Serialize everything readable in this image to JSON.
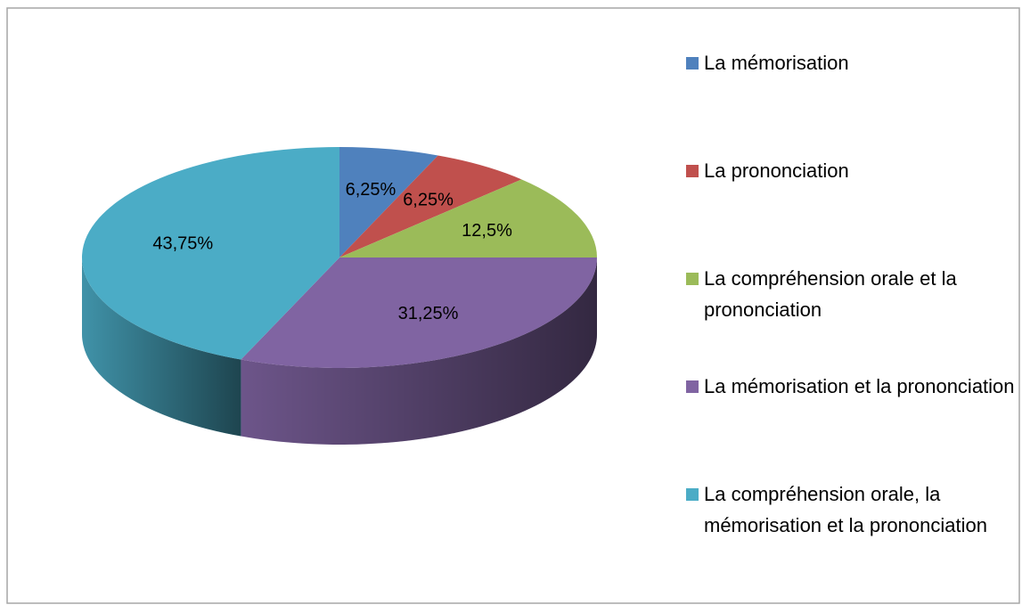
{
  "chart_data": {
    "type": "pie",
    "categories": [
      "La mémorisation",
      "La prononciation",
      "La compréhension orale et la prononciation",
      "La mémorisation et la prononciation",
      "La compréhension orale, la mémorisation et la prononciation"
    ],
    "values": [
      6.25,
      6.25,
      12.5,
      31.25,
      43.75
    ],
    "value_labels": [
      "6,25%",
      "6,25%",
      "12,5%",
      "31,25%",
      "43,75%"
    ],
    "colors": [
      "#4f81bd",
      "#c0504d",
      "#9bbb59",
      "#8064a2",
      "#4bacc6"
    ],
    "legend": "right"
  }
}
